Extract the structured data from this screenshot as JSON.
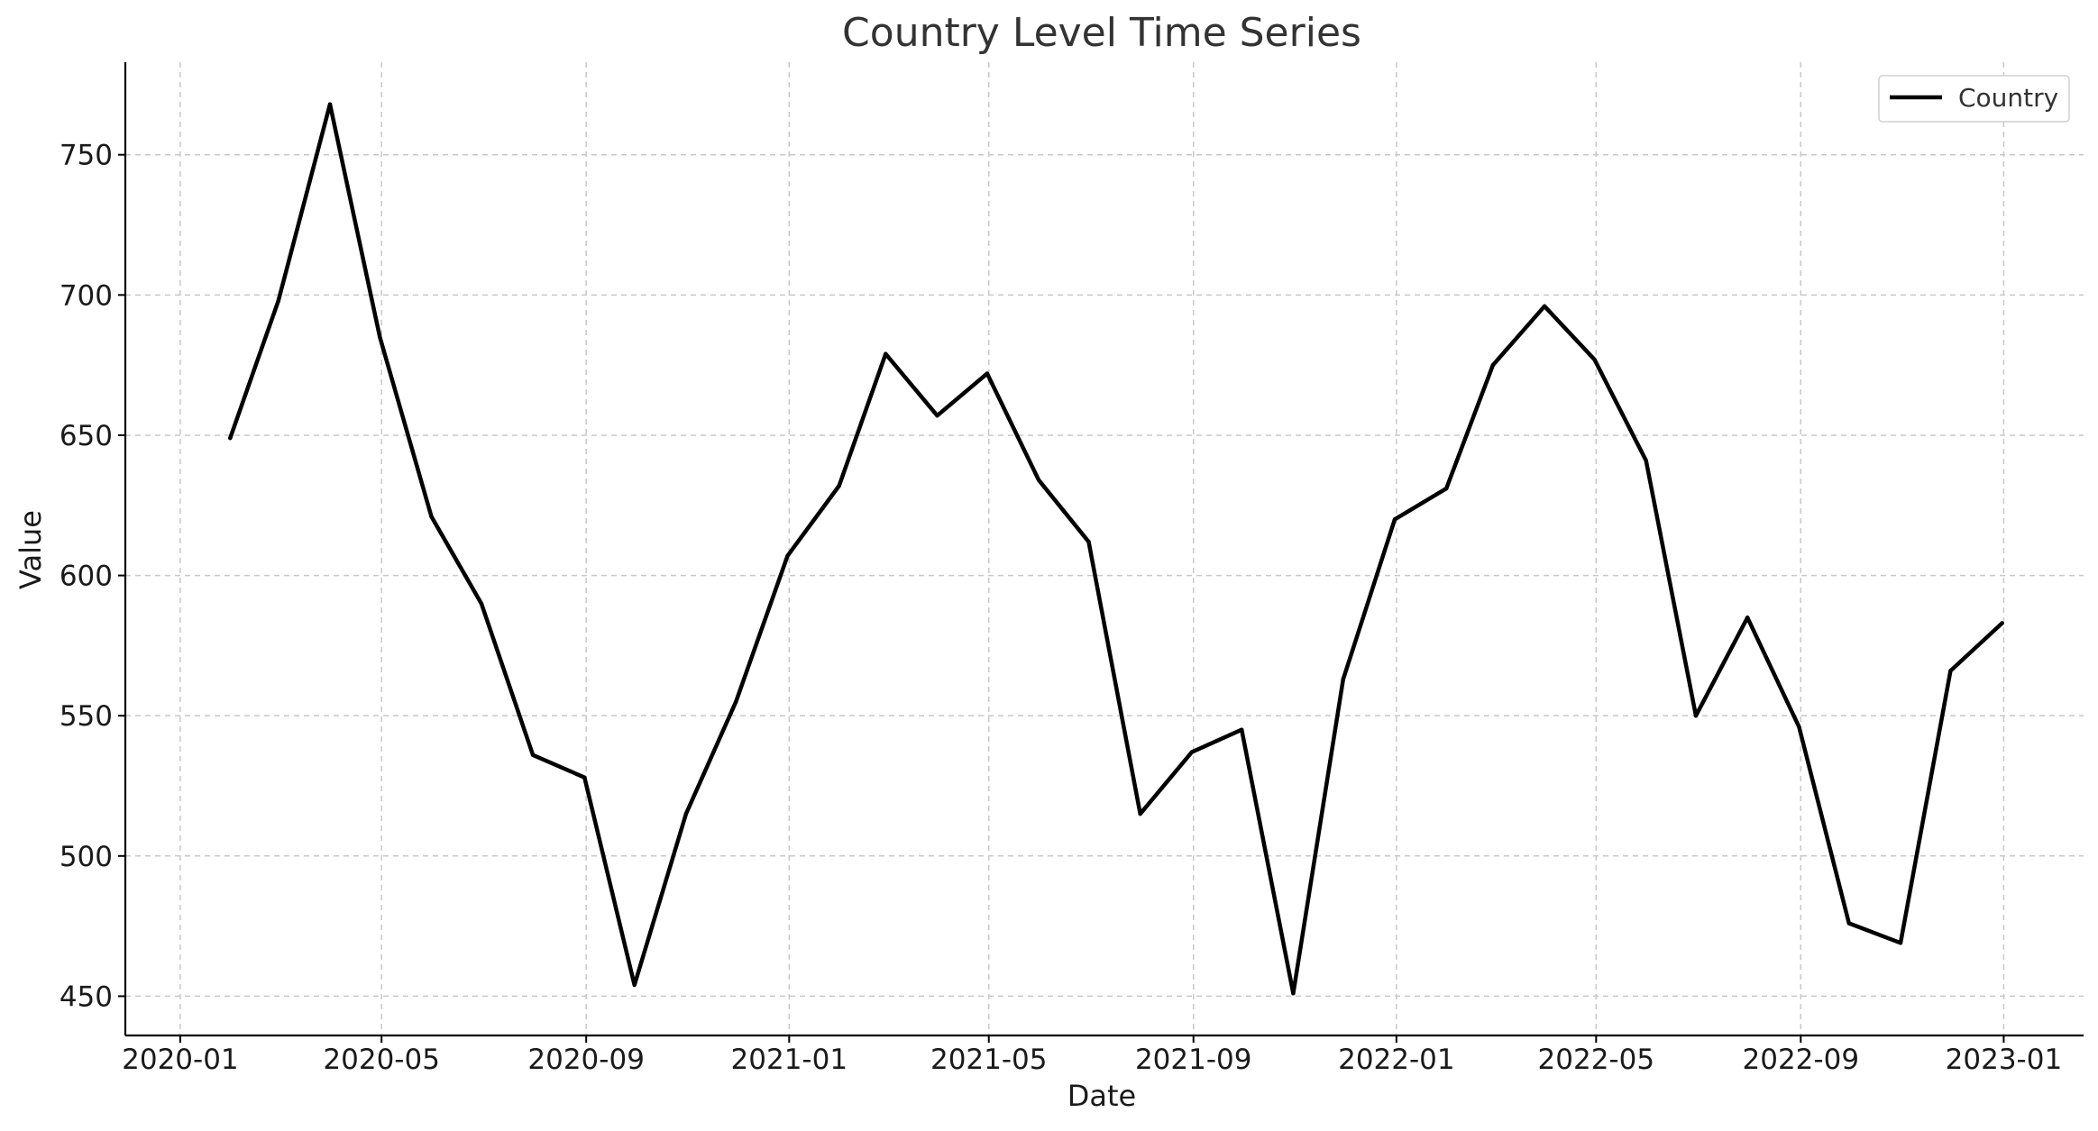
{
  "chart_data": {
    "type": "line",
    "title": "Country Level Time Series",
    "xlabel": "Date",
    "ylabel": "Value",
    "x_tick_labels": [
      "2020-01",
      "2020-05",
      "2020-09",
      "2021-01",
      "2021-05",
      "2021-09",
      "2022-01",
      "2022-05",
      "2022-09",
      "2023-01"
    ],
    "x_ticks": [
      "2020-01-01",
      "2020-05-01",
      "2020-09-01",
      "2021-01-01",
      "2021-05-01",
      "2021-09-01",
      "2022-01-01",
      "2022-05-01",
      "2022-09-01",
      "2023-01-01"
    ],
    "xlim": [
      "2019-11-29",
      "2023-02-18"
    ],
    "y_ticks": [
      450,
      500,
      550,
      600,
      650,
      700,
      750
    ],
    "ylim": [
      436,
      783
    ],
    "grid": true,
    "legend_position": "top-right",
    "x": [
      "2020-01-31",
      "2020-02-29",
      "2020-03-31",
      "2020-04-30",
      "2020-05-31",
      "2020-06-30",
      "2020-07-31",
      "2020-08-31",
      "2020-09-30",
      "2020-10-31",
      "2020-11-30",
      "2020-12-31",
      "2021-01-31",
      "2021-02-28",
      "2021-03-31",
      "2021-04-30",
      "2021-05-31",
      "2021-06-30",
      "2021-07-31",
      "2021-08-31",
      "2021-09-30",
      "2021-10-31",
      "2021-11-30",
      "2021-12-31",
      "2022-01-31",
      "2022-02-28",
      "2022-03-31",
      "2022-04-30",
      "2022-05-31",
      "2022-06-30",
      "2022-07-31",
      "2022-08-31",
      "2022-09-30",
      "2022-10-31",
      "2022-11-30",
      "2022-12-31"
    ],
    "series": [
      {
        "name": "Country",
        "color": "#000000",
        "values": [
          649,
          698,
          768,
          685,
          621,
          590,
          536,
          528,
          454,
          515,
          555,
          607,
          632,
          679,
          657,
          672,
          634,
          612,
          515,
          537,
          545,
          451,
          563,
          620,
          631,
          675,
          696,
          677,
          641,
          550,
          585,
          546,
          476,
          469,
          566,
          583
        ]
      }
    ]
  }
}
